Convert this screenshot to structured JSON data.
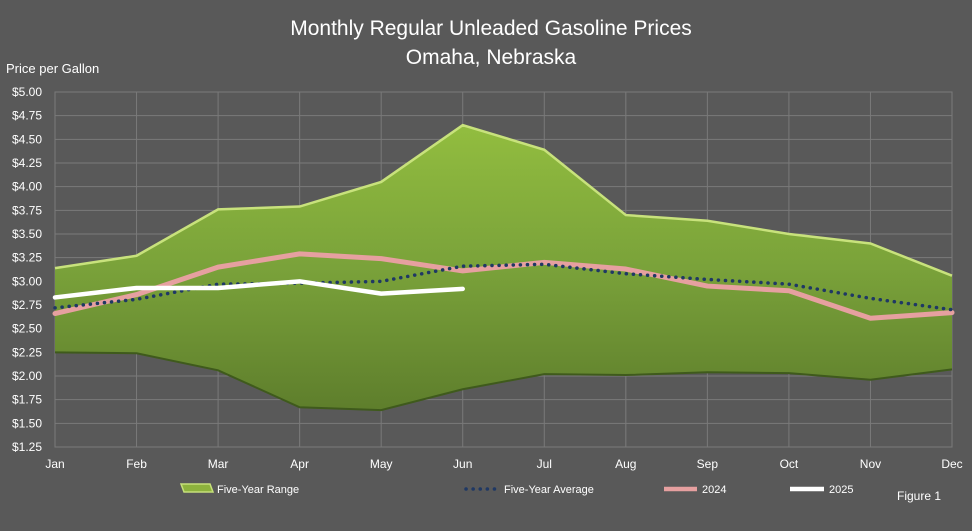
{
  "chart_data": {
    "type": "area",
    "title": "Monthly Regular Unleaded Gasoline Prices",
    "subtitle": "Omaha, Nebraska",
    "ylabel": "Price per Gallon",
    "xlabel": "",
    "figure_label": "Figure 1",
    "categories": [
      "Jan",
      "Feb",
      "Mar",
      "Apr",
      "May",
      "Jun",
      "Jul",
      "Aug",
      "Sep",
      "Oct",
      "Nov",
      "Dec"
    ],
    "ylim": [
      1.25,
      5.0
    ],
    "yticks": [
      "$1.25",
      "$1.50",
      "$1.75",
      "$2.00",
      "$2.25",
      "$2.50",
      "$2.75",
      "$3.00",
      "$3.25",
      "$3.50",
      "$3.75",
      "$4.00",
      "$4.25",
      "$4.50",
      "$4.75",
      "$5.00"
    ],
    "ytick_values": [
      1.25,
      1.5,
      1.75,
      2.0,
      2.25,
      2.5,
      2.75,
      3.0,
      3.25,
      3.5,
      3.75,
      4.0,
      4.25,
      4.5,
      4.75,
      5.0
    ],
    "grid": true,
    "legend_position": "bottom",
    "series": [
      {
        "name": "Five-Year Range",
        "kind": "range",
        "color": "#8db23d",
        "high": [
          3.14,
          3.27,
          3.76,
          3.79,
          4.05,
          4.65,
          4.39,
          3.7,
          3.64,
          3.5,
          3.4,
          3.06
        ],
        "low": [
          2.25,
          2.24,
          2.06,
          1.67,
          1.64,
          1.86,
          2.02,
          2.01,
          2.04,
          2.03,
          1.96,
          2.07
        ]
      },
      {
        "name": "Five-Year Average",
        "kind": "line",
        "style": "dotted",
        "color": "#1f3864",
        "values": [
          2.72,
          2.81,
          2.97,
          2.98,
          3.0,
          3.16,
          3.18,
          3.08,
          3.02,
          2.97,
          2.82,
          2.7
        ]
      },
      {
        "name": "2024",
        "kind": "line",
        "color": "#e6a0a0",
        "values": [
          2.66,
          2.86,
          3.15,
          3.29,
          3.24,
          3.11,
          3.2,
          3.13,
          2.95,
          2.9,
          2.61,
          2.67
        ]
      },
      {
        "name": "2025",
        "kind": "line",
        "color": "#ffffff",
        "values": [
          2.83,
          2.93,
          2.93,
          3.0,
          2.87,
          2.92,
          null,
          null,
          null,
          null,
          null,
          null
        ]
      }
    ]
  }
}
